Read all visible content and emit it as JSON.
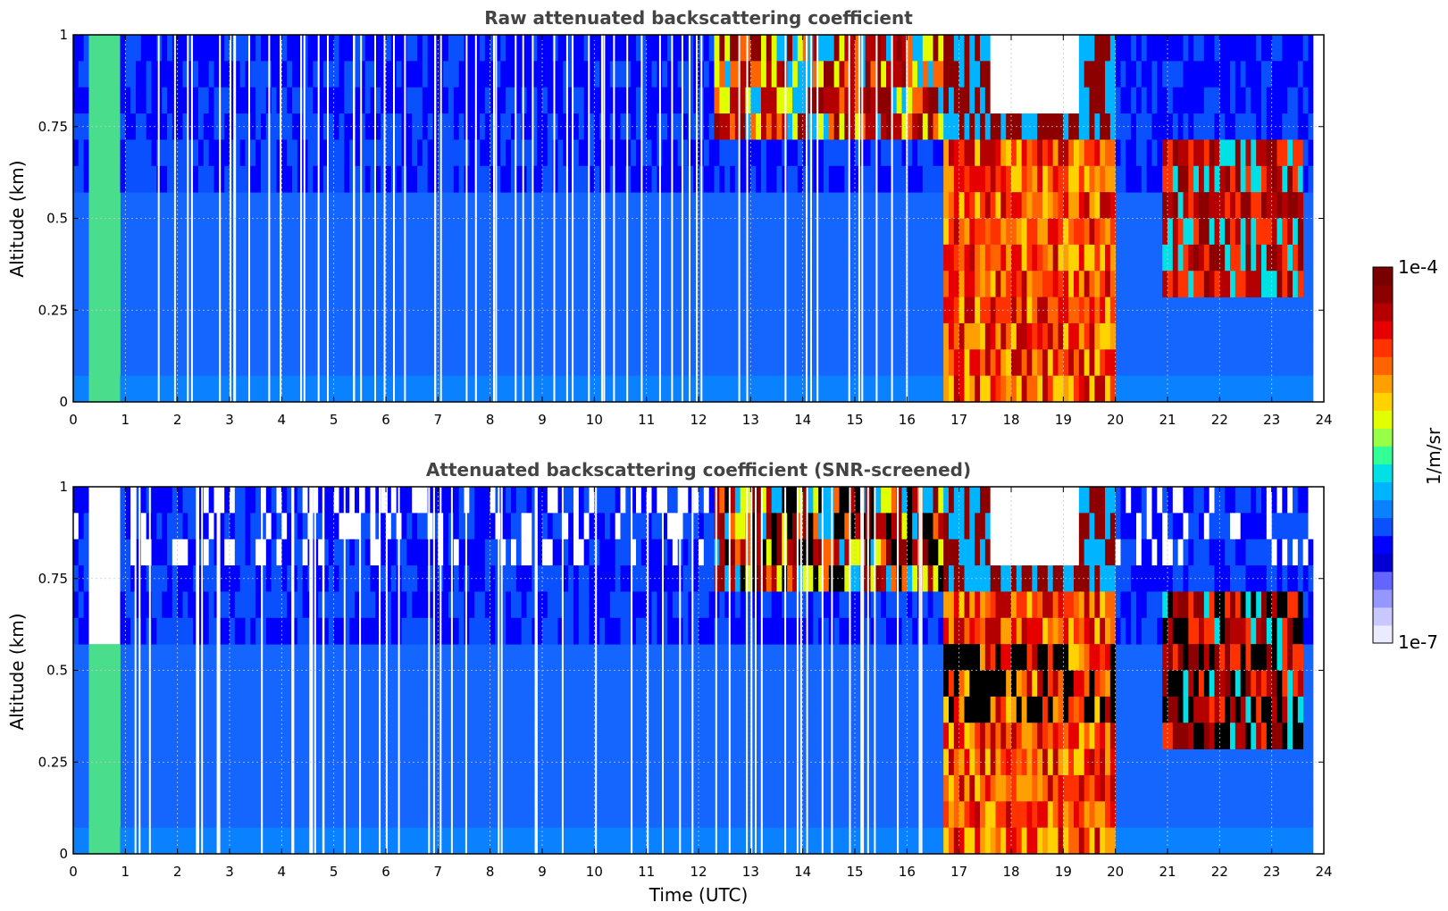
{
  "chart_data": [
    {
      "type": "heatmap",
      "title": "Raw attenuated backscattering coefficient",
      "xlabel": "",
      "ylabel": "Altitude (km)",
      "xlim": [
        0,
        24
      ],
      "ylim": [
        0,
        1
      ],
      "xticks": [
        "0",
        "1",
        "2",
        "3",
        "4",
        "5",
        "6",
        "7",
        "8",
        "9",
        "10",
        "11",
        "12",
        "13",
        "14",
        "15",
        "16",
        "17",
        "18",
        "19",
        "20",
        "21",
        "22",
        "23",
        "24"
      ],
      "yticks": [
        "0",
        "0.25",
        "0.5",
        "0.75",
        "1"
      ],
      "grid": true,
      "color_scale": "jet",
      "log_scale": true,
      "features": [
        {
          "name": "low signal band near surface",
          "time": [
            0.3,
            0.85
          ],
          "altitude": [
            0,
            1
          ]
        },
        {
          "name": "clouds aloft",
          "time": [
            12.3,
            15.8
          ],
          "altitude": [
            0.7,
            1.0
          ]
        },
        {
          "name": "dense aerosol/cloud layer",
          "time": [
            16.7,
            20.0
          ],
          "altitude": [
            0,
            0.7
          ]
        },
        {
          "name": "clear region aloft",
          "time": [
            17.6,
            19.2
          ],
          "altitude": [
            0.75,
            1.0
          ]
        },
        {
          "name": "elevated layer",
          "time": [
            20.9,
            23.6
          ],
          "altitude": [
            0.3,
            0.75
          ]
        }
      ]
    },
    {
      "type": "heatmap",
      "title": "Attenuated backscattering coefficient (SNR-screened)",
      "xlabel": "Time (UTC)",
      "ylabel": "Altitude (km)",
      "xlim": [
        0,
        24
      ],
      "ylim": [
        0,
        1
      ],
      "xticks": [
        "0",
        "1",
        "2",
        "3",
        "4",
        "5",
        "6",
        "7",
        "8",
        "9",
        "10",
        "11",
        "12",
        "13",
        "14",
        "15",
        "16",
        "17",
        "18",
        "19",
        "20",
        "21",
        "22",
        "23",
        "24"
      ],
      "yticks": [
        "0",
        "0.25",
        "0.5",
        "0.75",
        "1"
      ],
      "grid": true,
      "color_scale": "jet",
      "log_scale": true
    }
  ],
  "colorbar": {
    "label": "1/m/sr",
    "max_label": "1e-4",
    "min_label": "1e-7",
    "colors": [
      "#ebebff",
      "#c8c8ff",
      "#9696ff",
      "#6464ff",
      "#0000d2",
      "#0000ff",
      "#0a50ff",
      "#0a82ff",
      "#00b4ff",
      "#00e1e6",
      "#32ff96",
      "#96ff46",
      "#e1ff00",
      "#ffd200",
      "#ffa000",
      "#ff6400",
      "#ff3200",
      "#e60000",
      "#b40000",
      "#8c0000",
      "#7a0000"
    ]
  }
}
